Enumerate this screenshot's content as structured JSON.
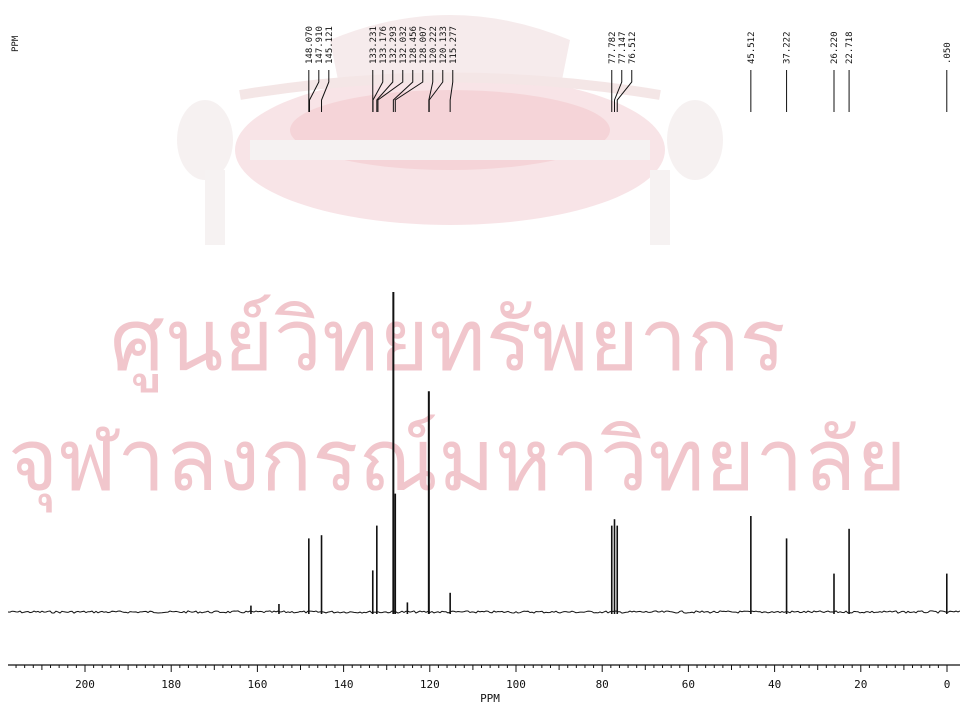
{
  "chart_data": {
    "type": "line",
    "title": "",
    "corner_label": "PPM",
    "xlabel": "PPM",
    "x_reversed": true,
    "xlim": [
      220,
      0
    ],
    "x_ticks": [
      200,
      180,
      160,
      140,
      120,
      100,
      80,
      60,
      40,
      20,
      0
    ],
    "series": [
      {
        "peaks": [
          {
            "ppm": 161.5,
            "height": 0.02
          },
          {
            "ppm": 155.0,
            "height": 0.025
          },
          {
            "ppm": 148.07,
            "height": 0.23
          },
          {
            "ppm": 145.121,
            "height": 0.24
          },
          {
            "ppm": 133.231,
            "height": 0.13
          },
          {
            "ppm": 132.293,
            "height": 0.27
          },
          {
            "ppm": 128.456,
            "height": 1.0
          },
          {
            "ppm": 128.007,
            "height": 0.37
          },
          {
            "ppm": 125.2,
            "height": 0.03
          },
          {
            "ppm": 120.222,
            "height": 0.69
          },
          {
            "ppm": 115.277,
            "height": 0.06
          },
          {
            "ppm": 77.782,
            "height": 0.27
          },
          {
            "ppm": 77.147,
            "height": 0.29
          },
          {
            "ppm": 76.512,
            "height": 0.27
          },
          {
            "ppm": 45.512,
            "height": 0.3
          },
          {
            "ppm": 37.222,
            "height": 0.23
          },
          {
            "ppm": 26.22,
            "height": 0.12
          },
          {
            "ppm": 22.718,
            "height": 0.26
          },
          {
            "ppm": 0.05,
            "height": 0.12
          }
        ]
      }
    ],
    "peak_labels": [
      {
        "text": "148.070",
        "ppm": 148.07
      },
      {
        "text": "147.910",
        "ppm": 147.91
      },
      {
        "text": "145.121",
        "ppm": 145.121
      },
      {
        "text": "133.231",
        "ppm": 133.231
      },
      {
        "text": "133.176",
        "ppm": 133.176
      },
      {
        "text": "132.293",
        "ppm": 132.293
      },
      {
        "text": "132.032",
        "ppm": 132.032
      },
      {
        "text": "128.456",
        "ppm": 128.456
      },
      {
        "text": "128.007",
        "ppm": 128.007
      },
      {
        "text": "120.222",
        "ppm": 120.222
      },
      {
        "text": "120.133",
        "ppm": 120.133
      },
      {
        "text": "115.277",
        "ppm": 115.277
      },
      {
        "text": "77.782",
        "ppm": 77.782
      },
      {
        "text": "77.147",
        "ppm": 77.147
      },
      {
        "text": "76.512",
        "ppm": 76.512
      },
      {
        "text": "45.512",
        "ppm": 45.512
      },
      {
        "text": "37.222",
        "ppm": 37.222
      },
      {
        "text": "26.220",
        "ppm": 26.22
      },
      {
        "text": "22.718",
        "ppm": 22.718
      },
      {
        "text": ".050",
        "ppm": 0.05
      }
    ],
    "grid": false,
    "legend": "none"
  },
  "watermark": {
    "line1": "ศูนย์วิทยทรัพยากร",
    "line2": "จุฬาลงกรณ์มหาวิทยาลัย"
  },
  "colors": {
    "ink": "#111111",
    "watermark_text": "#f1c6cc",
    "watermark_emblem": "#f6d9dc",
    "background": "#ffffff"
  }
}
